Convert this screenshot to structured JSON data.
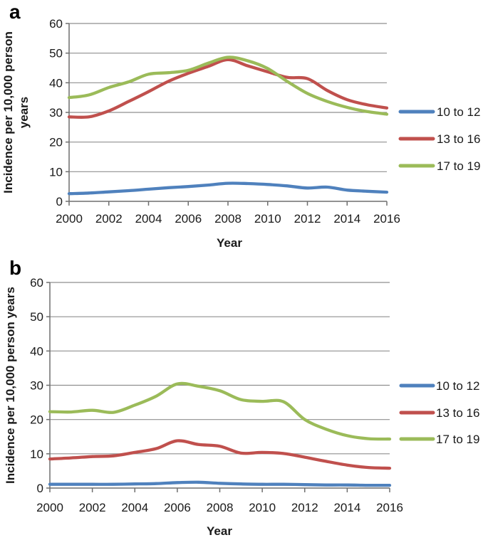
{
  "style": {
    "background": "#ffffff",
    "grid_color": "#8f8f8f",
    "axis_color": "#6f6f6f",
    "text_color": "#1a1a1a"
  },
  "chart_data": [
    {
      "type": "line",
      "panel_label": "a",
      "x": [
        2000,
        2001,
        2002,
        2003,
        2004,
        2005,
        2006,
        2007,
        2008,
        2009,
        2010,
        2011,
        2012,
        2013,
        2014,
        2015,
        2016
      ],
      "series": [
        {
          "name": "10 to 12",
          "color": "#4F81BD",
          "values": [
            2.6,
            2.8,
            3.2,
            3.6,
            4.1,
            4.6,
            5.0,
            5.5,
            6.1,
            6.0,
            5.7,
            5.2,
            4.5,
            4.8,
            3.8,
            3.4,
            3.1
          ]
        },
        {
          "name": "13 to 16",
          "color": "#C0504D",
          "values": [
            28.5,
            28.5,
            30.5,
            33.7,
            37.0,
            40.5,
            43.2,
            45.5,
            47.8,
            45.7,
            43.7,
            41.8,
            41.4,
            37.4,
            34.3,
            32.6,
            31.5
          ]
        },
        {
          "name": "17 to 19",
          "color": "#9BBB59",
          "values": [
            35.0,
            35.9,
            38.4,
            40.3,
            42.9,
            43.4,
            44.2,
            46.6,
            48.6,
            47.4,
            44.8,
            40.4,
            36.4,
            33.7,
            31.7,
            30.3,
            29.4
          ]
        }
      ],
      "xlabel": "Year",
      "ylabel": "Incidence per 10,000 person years",
      "ylabel_lines": [
        "Incidence per 10,000 person",
        "years"
      ],
      "ylim": [
        0,
        60
      ],
      "yticks": [
        0,
        10,
        20,
        30,
        40,
        50,
        60
      ],
      "xticks": [
        2000,
        2002,
        2004,
        2006,
        2008,
        2010,
        2012,
        2014,
        2016
      ],
      "grid": true,
      "legend_position": "right",
      "legend": [
        "10 to 12",
        "13 to 16",
        "17 to 19"
      ]
    },
    {
      "type": "line",
      "panel_label": "b",
      "x": [
        2000,
        2001,
        2002,
        2003,
        2004,
        2005,
        2006,
        2007,
        2008,
        2009,
        2010,
        2011,
        2012,
        2013,
        2014,
        2015,
        2016
      ],
      "series": [
        {
          "name": "10 to 12",
          "color": "#4F81BD",
          "values": [
            1.1,
            1.1,
            1.1,
            1.1,
            1.2,
            1.3,
            1.6,
            1.7,
            1.4,
            1.2,
            1.1,
            1.1,
            1.0,
            0.9,
            0.9,
            0.8,
            0.8
          ]
        },
        {
          "name": "13 to 16",
          "color": "#C0504D",
          "values": [
            8.5,
            8.8,
            9.2,
            9.4,
            10.4,
            11.5,
            13.8,
            12.7,
            12.2,
            10.2,
            10.4,
            10.1,
            9.0,
            7.8,
            6.7,
            6.0,
            5.8
          ]
        },
        {
          "name": "17 to 19",
          "color": "#9BBB59",
          "values": [
            22.3,
            22.2,
            22.7,
            22.1,
            24.2,
            26.8,
            30.4,
            29.7,
            28.4,
            25.8,
            25.3,
            25.2,
            20.0,
            17.2,
            15.3,
            14.4,
            14.3
          ]
        }
      ],
      "xlabel": "Year",
      "ylabel": "Incidence per 10,000 person years",
      "ylabel_lines": [
        "Incidence per 10,000 person years"
      ],
      "ylim": [
        0,
        60
      ],
      "yticks": [
        0,
        10,
        20,
        30,
        40,
        50,
        60
      ],
      "xticks": [
        2000,
        2002,
        2004,
        2006,
        2008,
        2010,
        2012,
        2014,
        2016
      ],
      "grid": true,
      "legend_position": "right",
      "legend": [
        "10 to 12",
        "13 to 16",
        "17 to 19"
      ]
    }
  ]
}
